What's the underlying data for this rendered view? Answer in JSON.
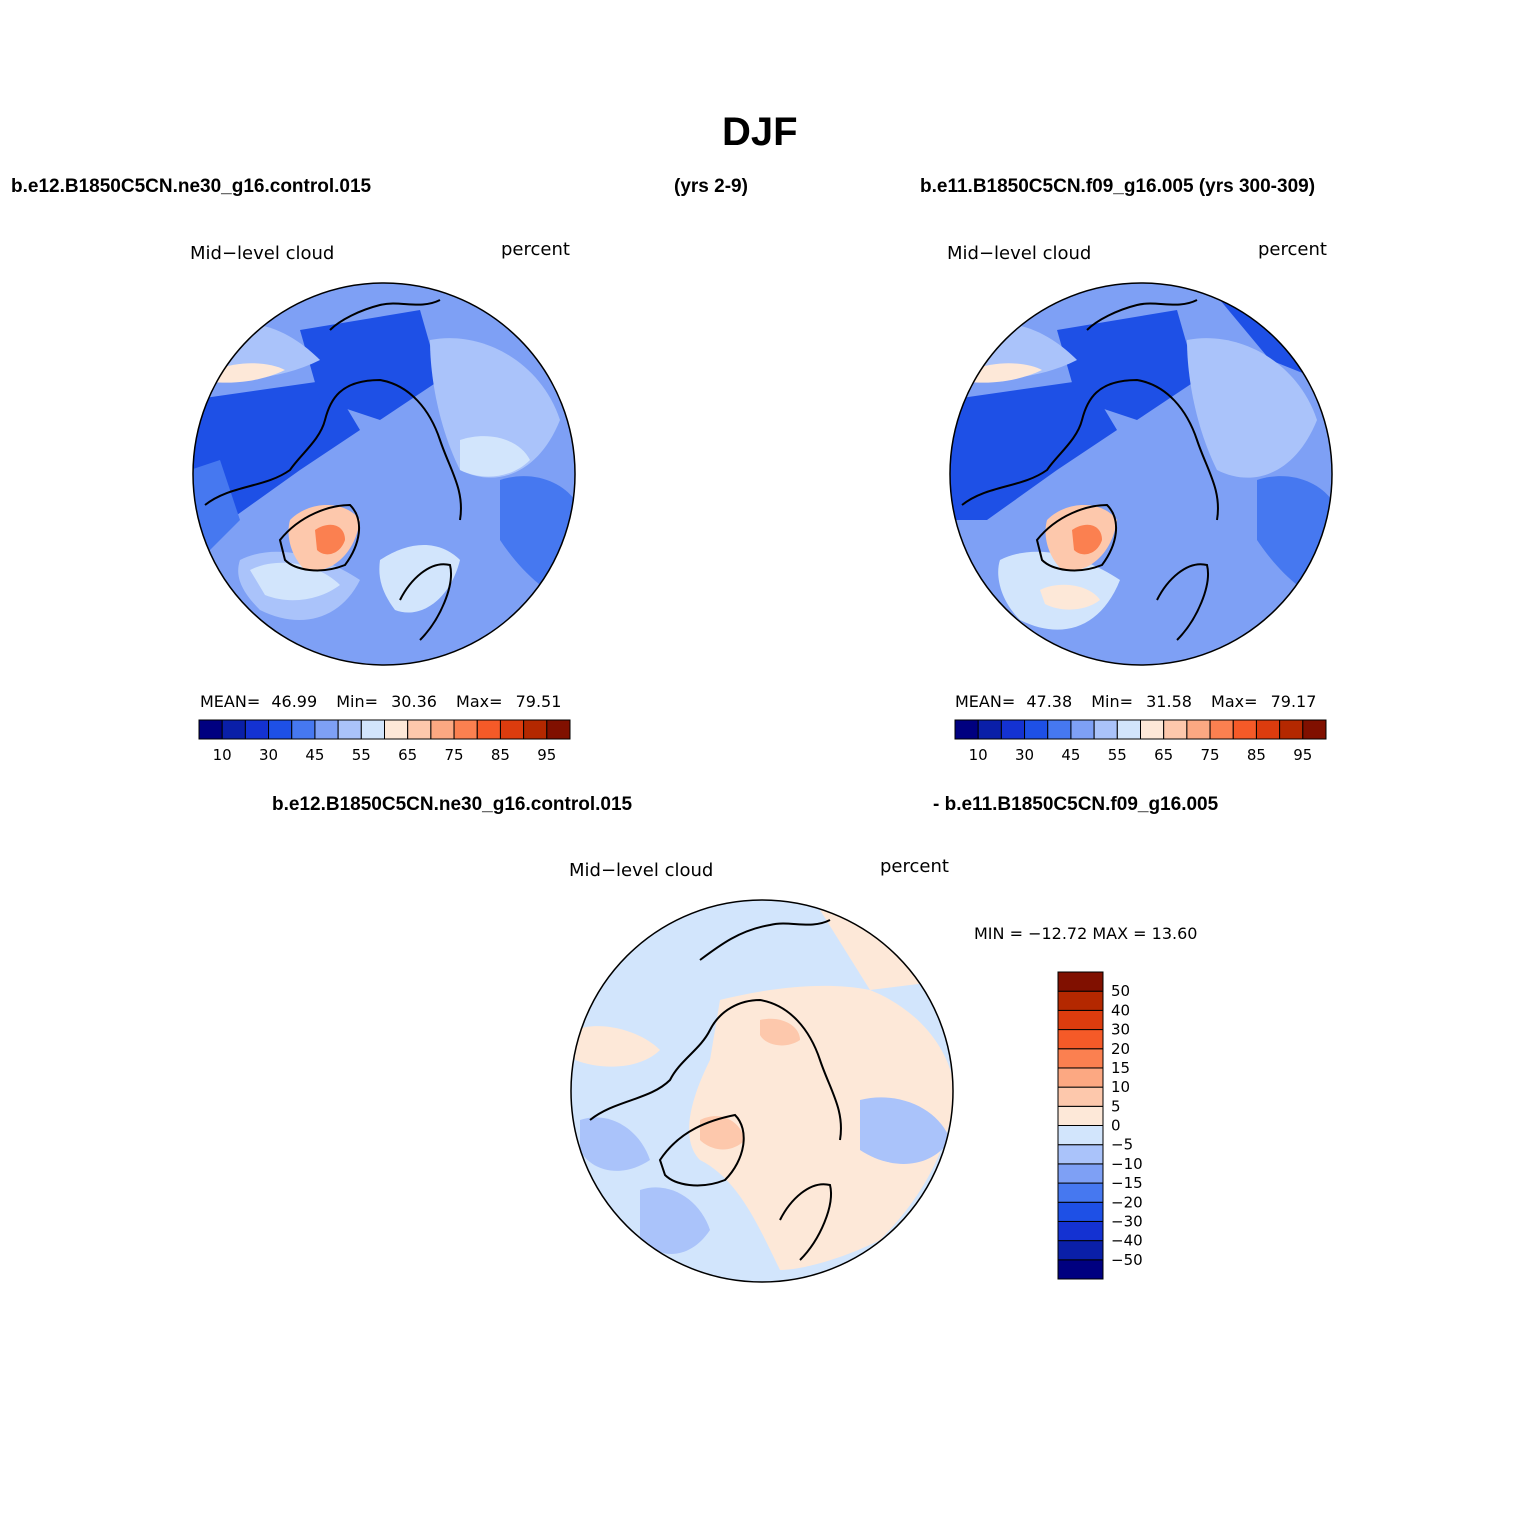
{
  "title": "DJF",
  "header": {
    "left_case": "b.e12.B1850C5CN.ne30_g16.control.015",
    "left_years": "(yrs 2-9)",
    "right_case": "b.e11.B1850C5CN.f09_g16.005 (yrs 300-309)",
    "diff_left": "b.e12.B1850C5CN.ne30_g16.control.015",
    "diff_right": "- b.e11.B1850C5CN.f09_g16.005"
  },
  "panels": [
    {
      "variable": "Mid−level cloud",
      "units": "percent",
      "stats": {
        "mean_label": "MEAN=",
        "mean": "46.99",
        "min_label": "Min=",
        "min": "30.36",
        "max_label": "Max=",
        "max": "79.51"
      }
    },
    {
      "variable": "Mid−level cloud",
      "units": "percent",
      "stats": {
        "mean_label": "MEAN=",
        "mean": "47.38",
        "min_label": "Min=",
        "min": "31.58",
        "max_label": "Max=",
        "max": "79.17"
      }
    }
  ],
  "diff_panel": {
    "variable": "Mid−level cloud",
    "units": "percent",
    "minmax": "MIN = −12.72 MAX =  13.60"
  },
  "colorbar_abs": {
    "colors": [
      "#000080",
      "#0a1fa8",
      "#1432d2",
      "#1e50e6",
      "#4678f0",
      "#7ea0f5",
      "#aac3fa",
      "#d2e5fc",
      "#fde8d8",
      "#fdc8ac",
      "#fca882",
      "#fb8050",
      "#f55a28",
      "#dc3c0e",
      "#b42800",
      "#801000"
    ],
    "tick_labels": [
      "10",
      "30",
      "45",
      "55",
      "65",
      "75",
      "85",
      "95"
    ]
  },
  "colorbar_diff": {
    "colors": [
      "#000080",
      "#0a1fa8",
      "#1432d2",
      "#1e50e6",
      "#4678f0",
      "#7ea0f5",
      "#aac3fa",
      "#d2e5fc",
      "#fde8d8",
      "#fdc8ac",
      "#fca882",
      "#fb8050",
      "#f55a28",
      "#dc3c0e",
      "#b42800",
      "#801000"
    ],
    "tick_labels": [
      "−50",
      "−40",
      "−30",
      "−20",
      "−15",
      "−10",
      "−5",
      "0",
      "5",
      "10",
      "15",
      "20",
      "30",
      "40",
      "50"
    ]
  },
  "chart_data": [
    {
      "type": "heatmap",
      "projection": "north polar stereographic",
      "title": "b.e12.B1850C5CN.ne30_g16.control.015 (yrs 2-9)",
      "variable": "Mid-level cloud",
      "units": "percent",
      "mean": 46.99,
      "min": 30.36,
      "max": 79.51,
      "levels": [
        5,
        10,
        20,
        30,
        40,
        45,
        50,
        55,
        60,
        65,
        70,
        75,
        80,
        85,
        90,
        95
      ]
    },
    {
      "type": "heatmap",
      "projection": "north polar stereographic",
      "title": "b.e11.B1850C5CN.f09_g16.005 (yrs 300-309)",
      "variable": "Mid-level cloud",
      "units": "percent",
      "mean": 47.38,
      "min": 31.58,
      "max": 79.17,
      "levels": [
        5,
        10,
        20,
        30,
        40,
        45,
        50,
        55,
        60,
        65,
        70,
        75,
        80,
        85,
        90,
        95
      ]
    },
    {
      "type": "heatmap",
      "projection": "north polar stereographic",
      "title": "b.e12.B1850C5CN.ne30_g16.control.015 - b.e11.B1850C5CN.f09_g16.005",
      "variable": "Mid-level cloud",
      "units": "percent",
      "min": -12.72,
      "max": 13.6,
      "levels": [
        -50,
        -40,
        -30,
        -20,
        -15,
        -10,
        -5,
        0,
        5,
        10,
        15,
        20,
        30,
        40,
        50
      ]
    }
  ]
}
